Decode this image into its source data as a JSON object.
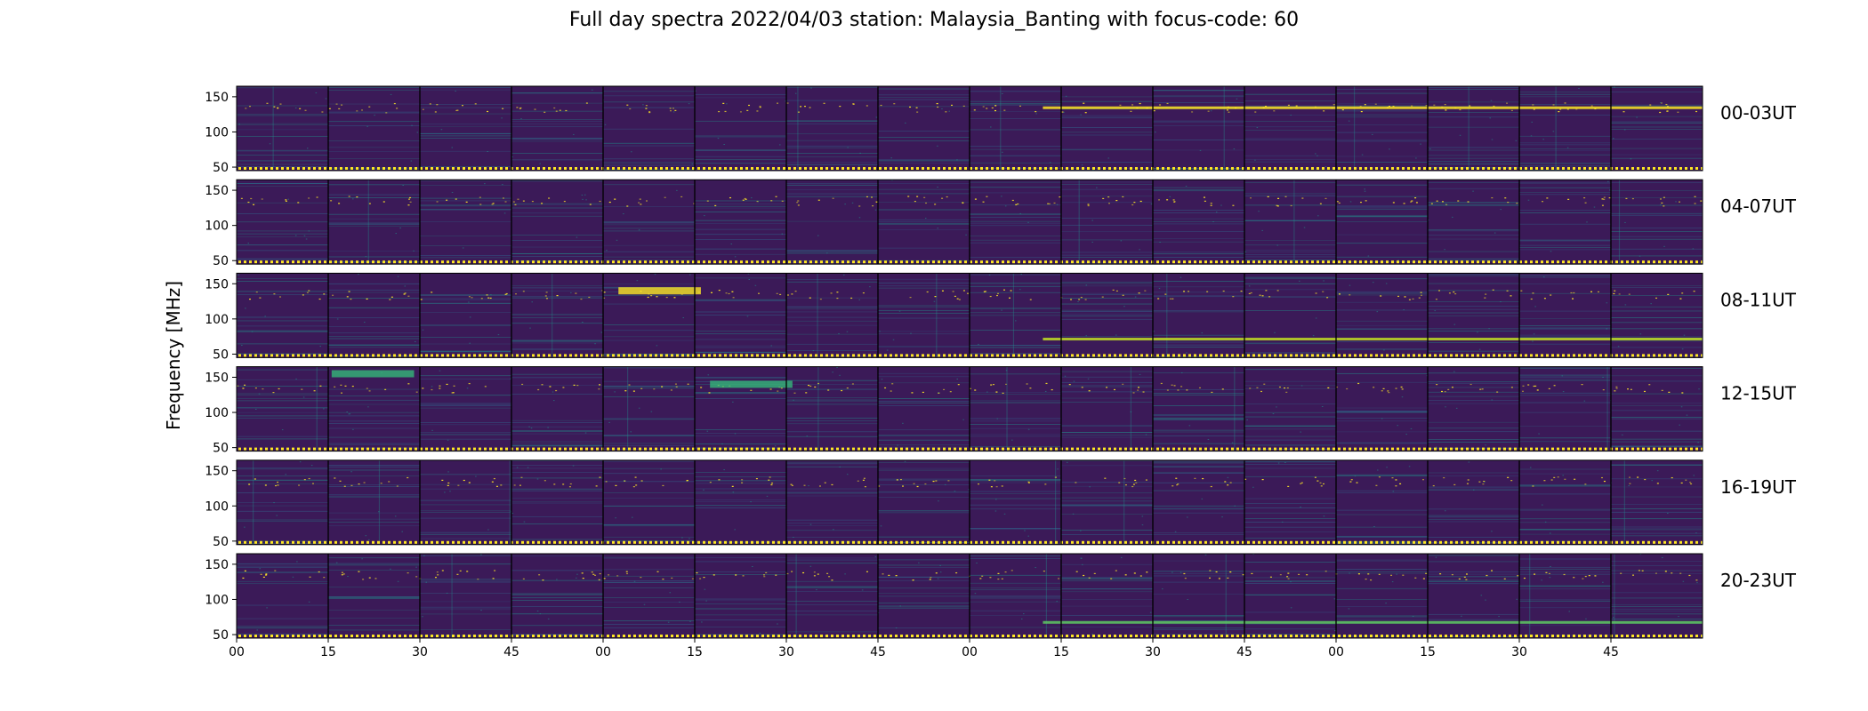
{
  "title": "Full day spectra 2022/04/03 station: Malaysia_Banting with focus-code: 60",
  "chart_data": {
    "type": "heatmap",
    "title": "Full day spectra 2022/04/03 station: Malaysia_Banting with focus-code: 60",
    "ylabel": "Frequency [MHz]",
    "xlabel": "",
    "ylim": [
      45,
      165
    ],
    "y_ticks": [
      "50",
      "100",
      "150"
    ],
    "x_ticks": [
      "00",
      "15",
      "30",
      "45",
      "00",
      "15",
      "30",
      "45",
      "00",
      "15",
      "30",
      "45",
      "00",
      "15",
      "30",
      "45"
    ],
    "panels": [
      {
        "label": "00-03UT"
      },
      {
        "label": "04-07UT"
      },
      {
        "label": "08-11UT"
      },
      {
        "label": "12-15UT"
      },
      {
        "label": "16-19UT"
      },
      {
        "label": "20-23UT"
      }
    ],
    "segments_per_panel": 16,
    "segment_minutes": 15,
    "colormap": "viridis",
    "colors": {
      "background": "#3b1a58",
      "low": "#440154",
      "mid": "#21918c",
      "high": "#fde725"
    },
    "features": [
      {
        "panel": "00-03UT",
        "kind": "band",
        "freq": 135,
        "color": "#fde725"
      },
      {
        "panel": "08-11UT",
        "kind": "burst",
        "freq": 140,
        "color": "#fde725"
      },
      {
        "panel": "08-11UT",
        "kind": "band",
        "freq": 72,
        "color": "#c2df23"
      },
      {
        "panel": "12-15UT",
        "kind": "burst",
        "freq": 140,
        "color": "#35b779"
      },
      {
        "panel": "12-15UT",
        "kind": "burst",
        "freq": 155,
        "color": "#35b779"
      },
      {
        "panel": "20-23UT",
        "kind": "band",
        "freq": 68,
        "color": "#5ec962"
      }
    ]
  }
}
